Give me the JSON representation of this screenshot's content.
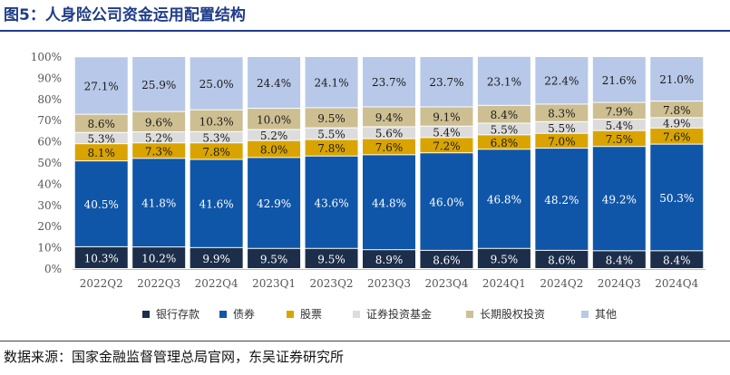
{
  "title": "图5：人身险公司资金运用配置结构",
  "source": "数据来源：国家金融监督管理总局官网，东吴证券研究所",
  "chart_data": {
    "type": "bar",
    "stacked": true,
    "categories": [
      "2022Q2",
      "2022Q3",
      "2022Q4",
      "2023Q1",
      "2023Q2",
      "2023Q3",
      "2023Q4",
      "2024Q1",
      "2024Q2",
      "2024Q3",
      "2024Q4"
    ],
    "series": [
      {
        "name": "银行存款",
        "color": "#1c2e4a",
        "label_color": "#ffffff",
        "values": [
          10.3,
          10.2,
          9.9,
          9.5,
          9.5,
          8.9,
          8.6,
          9.5,
          8.6,
          8.4,
          8.4
        ]
      },
      {
        "name": "债券",
        "color": "#0f56a8",
        "label_color": "#ffffff",
        "values": [
          40.5,
          41.8,
          41.6,
          42.9,
          43.6,
          44.8,
          46.0,
          46.8,
          48.2,
          49.2,
          50.3
        ]
      },
      {
        "name": "股票",
        "color": "#d9a400",
        "label_color": "#1a1a1a",
        "values": [
          8.1,
          7.3,
          7.8,
          8.0,
          7.8,
          7.6,
          7.2,
          6.8,
          7.0,
          7.5,
          7.6
        ]
      },
      {
        "name": "证券投资基金",
        "color": "#dcdcdc",
        "label_color": "#1a1a1a",
        "values": [
          5.3,
          5.2,
          5.3,
          5.2,
          5.5,
          5.6,
          5.4,
          5.5,
          5.5,
          5.4,
          4.9
        ]
      },
      {
        "name": "长期股权投资",
        "color": "#cdbf92",
        "label_color": "#1a1a1a",
        "values": [
          8.6,
          9.6,
          10.3,
          10.0,
          9.5,
          9.4,
          9.1,
          8.4,
          8.3,
          7.9,
          7.8
        ]
      },
      {
        "name": "其他",
        "color": "#b8c8e8",
        "label_color": "#1a1a1a",
        "values": [
          27.1,
          25.9,
          25.0,
          24.4,
          24.1,
          23.7,
          23.7,
          23.1,
          22.4,
          21.6,
          21.0
        ]
      }
    ],
    "value_labels": [
      [
        "10.3%",
        "10.2%",
        "9.9%",
        "9.5%",
        "9.5%",
        "8.9%",
        "8.6%",
        "9.5%",
        "8.6%",
        "8.4%",
        "8.4%"
      ],
      [
        "40.5%",
        "41.8%",
        "41.6%",
        "42.9%",
        "43.6%",
        "44.8%",
        "46.0%",
        "46.8%",
        "48.2%",
        "49.2%",
        "50.3%"
      ],
      [
        "8.1%",
        "7.3%",
        "7.8%",
        "8.0%",
        "7.8%",
        "7.6%",
        "7.2%",
        "6.8%",
        "7.0%",
        "7.5%",
        "7.6%"
      ],
      [
        "5.3%",
        "5.2%",
        "5.3%",
        "5.2%",
        "5.5%",
        "5.6%",
        "5.4%",
        "5.5%",
        "5.5%",
        "5.4%",
        "4.9%"
      ],
      [
        "8.6%",
        "9.6%",
        "10.3%",
        "10.0%",
        "9.5%",
        "9.4%",
        "9.1%",
        "8.4%",
        "8.3%",
        "7.9%",
        "7.8%"
      ],
      [
        "27.1%",
        "25.9%",
        "25.0%",
        "24.4%",
        "24.1%",
        "23.7%",
        "23.7%",
        "23.1%",
        "22.4%",
        "21.6%",
        "21.0%"
      ]
    ],
    "y_ticks": [
      "0%",
      "10%",
      "20%",
      "30%",
      "40%",
      "50%",
      "60%",
      "70%",
      "80%",
      "90%",
      "100%"
    ],
    "ylim": [
      0,
      100
    ],
    "grid": false,
    "legend_position": "bottom"
  }
}
